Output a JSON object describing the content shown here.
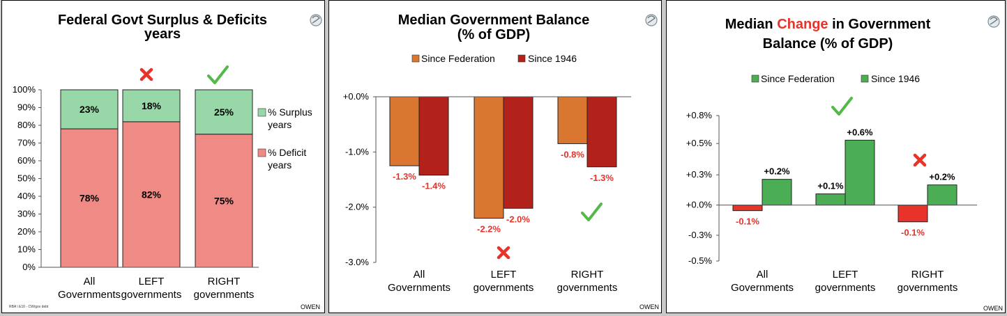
{
  "footer": "OWEN",
  "source": "RBA \\ E10 - CW/gov debt",
  "colors": {
    "surplus": "#98d8a8",
    "deficit": "#f08a84",
    "since_federation_bal": "#d97730",
    "since_1946_bal": "#b2221b",
    "change_green": "#4cae54",
    "change_red": "#e8332a",
    "mark_red": "#e8332a",
    "mark_green": "#55b84a"
  },
  "chart_data": [
    {
      "type": "bar",
      "stacked": true,
      "title_lines": [
        "Federal Govt Surplus & Deficits",
        "years"
      ],
      "categories": [
        [
          "All",
          "Governments"
        ],
        [
          "LEFT",
          "governments"
        ],
        [
          "RIGHT",
          "governments"
        ]
      ],
      "series": [
        {
          "name": "% Deficit years",
          "legend_lines": [
            "% Deficit",
            "years"
          ],
          "values": [
            78,
            82,
            75
          ],
          "labels": [
            "78%",
            "82%",
            "75%"
          ]
        },
        {
          "name": "% Surplus years",
          "legend_lines": [
            "% Surplus",
            "years"
          ],
          "values": [
            23,
            18,
            25
          ],
          "labels": [
            "23%",
            "18%",
            "25%"
          ]
        }
      ],
      "ylim": [
        0,
        100
      ],
      "y_ticks": [
        "0%",
        "10%",
        "20%",
        "30%",
        "40%",
        "50%",
        "60%",
        "70%",
        "80%",
        "90%",
        "100%"
      ],
      "legend_position": "right",
      "marks": [
        "",
        "cross",
        "check"
      ]
    },
    {
      "type": "bar",
      "title_lines": [
        "Median Government Balance",
        "(% of GDP)"
      ],
      "categories": [
        [
          "All",
          "Governments"
        ],
        [
          "LEFT",
          "governments"
        ],
        [
          "RIGHT",
          "governments"
        ]
      ],
      "series": [
        {
          "name": "Since Federation",
          "values": [
            -1.25,
            -2.2,
            -0.85
          ],
          "labels": [
            "-1.3%",
            "-2.2%",
            "-0.8%"
          ]
        },
        {
          "name": "Since 1946",
          "values": [
            -1.42,
            -2.02,
            -1.27
          ],
          "labels": [
            "-1.4%",
            "-2.0%",
            "-1.3%"
          ]
        }
      ],
      "ylim": [
        -3.0,
        0.0
      ],
      "y_ticks": [
        "+0.0%",
        "-1.0%",
        "-2.0%",
        "-3.0%"
      ],
      "legend_position": "top",
      "marks": [
        "",
        "cross",
        "check"
      ]
    },
    {
      "type": "bar",
      "title_lines": [
        [
          "Median ",
          "Change",
          " in Government"
        ],
        [
          "Balance (% of GDP)"
        ]
      ],
      "categories": [
        [
          "All",
          "Governments"
        ],
        [
          "LEFT",
          "governments"
        ],
        [
          "RIGHT",
          "governments"
        ]
      ],
      "series": [
        {
          "name": "Since Federation",
          "values": [
            -0.05,
            0.1,
            -0.15
          ],
          "labels": [
            "-0.1%",
            "+0.1%",
            "-0.1%"
          ]
        },
        {
          "name": "Since 1946",
          "values": [
            0.23,
            0.58,
            0.18
          ],
          "labels": [
            "+0.2%",
            "+0.6%",
            "+0.2%"
          ]
        }
      ],
      "ylim": [
        -0.5,
        0.8
      ],
      "y_ticks": [
        "+0.8%",
        "+0.5%",
        "+0.3%",
        "+0.0%",
        "-0.3%",
        "-0.5%"
      ],
      "legend_position": "top",
      "marks": [
        "",
        "check",
        "cross"
      ]
    }
  ]
}
